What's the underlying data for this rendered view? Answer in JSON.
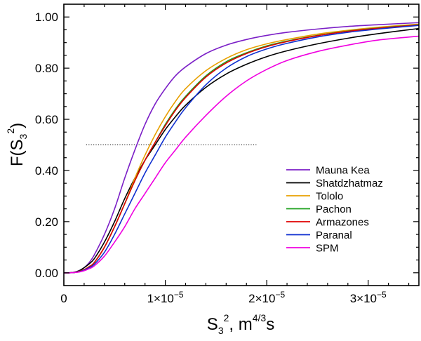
{
  "chart_data": {
    "type": "line",
    "title": "",
    "xlabel": {
      "base": "S",
      "sub": "3",
      "sup": "2",
      "units_prefix": ",  m",
      "units_sup": "4/3",
      "units_suffix": "s"
    },
    "ylabel": {
      "prefix": "F(S",
      "sub": "3",
      "sup": "2",
      "suffix": ")"
    },
    "xlim": [
      0,
      3.5e-05
    ],
    "ylim": [
      -0.05,
      1.05
    ],
    "x_ticks": [
      {
        "value": 0,
        "mant": "0",
        "exp": ""
      },
      {
        "value": 1e-05,
        "mant": "1×10",
        "exp": "−5"
      },
      {
        "value": 2e-05,
        "mant": "2×10",
        "exp": "−5"
      },
      {
        "value": 3e-05,
        "mant": "3×10",
        "exp": "−5"
      }
    ],
    "y_ticks": [
      {
        "value": 0.0,
        "label": "0.00"
      },
      {
        "value": 0.2,
        "label": "0.20"
      },
      {
        "value": 0.4,
        "label": "0.40"
      },
      {
        "value": 0.6,
        "label": "0.60"
      },
      {
        "value": 0.8,
        "label": "0.80"
      },
      {
        "value": 1.0,
        "label": "1.00"
      }
    ],
    "reference_line": {
      "x_start": 2.2e-06,
      "x_end": 1.9e-05,
      "y": 0.5,
      "style": "dotted"
    },
    "legend_position": "center-right",
    "series": [
      {
        "name": "Mauna Kea",
        "color": "#7B1FC7",
        "x": [
          0,
          5e-07,
          1e-06,
          1.5e-06,
          2e-06,
          2.5e-06,
          3e-06,
          4e-06,
          5e-06,
          6e-06,
          7e-06,
          8e-06,
          9e-06,
          1e-05,
          1.1e-05,
          1.2e-05,
          1.4e-05,
          1.6e-05,
          1.8e-05,
          2e-05,
          2.2e-05,
          2.5e-05,
          2.8e-05,
          3.1e-05,
          3.5e-05
        ],
        "y": [
          0,
          0,
          0.002,
          0.008,
          0.02,
          0.04,
          0.07,
          0.15,
          0.25,
          0.37,
          0.48,
          0.58,
          0.66,
          0.72,
          0.77,
          0.805,
          0.857,
          0.89,
          0.912,
          0.928,
          0.94,
          0.953,
          0.963,
          0.97,
          0.978
        ]
      },
      {
        "name": "Shatdzhatmaz",
        "color": "#000000",
        "x": [
          0,
          5e-07,
          1e-06,
          1.5e-06,
          2e-06,
          2.5e-06,
          3e-06,
          4e-06,
          5e-06,
          6e-06,
          7e-06,
          8e-06,
          9e-06,
          1e-05,
          1.1e-05,
          1.2e-05,
          1.4e-05,
          1.6e-05,
          1.8e-05,
          2e-05,
          2.2e-05,
          2.5e-05,
          2.8e-05,
          3.1e-05,
          3.5e-05
        ],
        "y": [
          0,
          0,
          0.002,
          0.008,
          0.02,
          0.035,
          0.055,
          0.12,
          0.2,
          0.29,
          0.37,
          0.44,
          0.5,
          0.56,
          0.61,
          0.655,
          0.725,
          0.777,
          0.815,
          0.845,
          0.868,
          0.895,
          0.917,
          0.935,
          0.955
        ]
      },
      {
        "name": "Tololo",
        "color": "#E8A000",
        "x": [
          0,
          5e-07,
          1e-06,
          1.5e-06,
          2e-06,
          2.5e-06,
          3e-06,
          4e-06,
          5e-06,
          6e-06,
          7e-06,
          8e-06,
          9e-06,
          1e-05,
          1.1e-05,
          1.2e-05,
          1.4e-05,
          1.6e-05,
          1.8e-05,
          2e-05,
          2.2e-05,
          2.5e-05,
          2.8e-05,
          3.1e-05,
          3.5e-05
        ],
        "y": [
          0,
          0,
          0.001,
          0.005,
          0.012,
          0.024,
          0.04,
          0.1,
          0.18,
          0.27,
          0.37,
          0.46,
          0.54,
          0.61,
          0.67,
          0.72,
          0.79,
          0.838,
          0.872,
          0.895,
          0.912,
          0.933,
          0.948,
          0.96,
          0.972
        ]
      },
      {
        "name": "Pachon",
        "color": "#1EA01E",
        "x": [
          0,
          5e-07,
          1e-06,
          1.5e-06,
          2e-06,
          2.5e-06,
          3e-06,
          4e-06,
          5e-06,
          6e-06,
          7e-06,
          8e-06,
          9e-06,
          1e-05,
          1.1e-05,
          1.2e-05,
          1.4e-05,
          1.6e-05,
          1.8e-05,
          2e-05,
          2.2e-05,
          2.5e-05,
          2.8e-05,
          3.1e-05,
          3.5e-05
        ],
        "y": [
          0,
          0,
          0.001,
          0.005,
          0.012,
          0.024,
          0.04,
          0.1,
          0.18,
          0.27,
          0.36,
          0.44,
          0.51,
          0.58,
          0.64,
          0.69,
          0.77,
          0.825,
          0.86,
          0.887,
          0.906,
          0.928,
          0.945,
          0.957,
          0.97
        ]
      },
      {
        "name": "Armazones",
        "color": "#E00000",
        "x": [
          0,
          5e-07,
          1e-06,
          1.5e-06,
          2e-06,
          2.5e-06,
          3e-06,
          4e-06,
          5e-06,
          6e-06,
          7e-06,
          8e-06,
          9e-06,
          1e-05,
          1.1e-05,
          1.2e-05,
          1.4e-05,
          1.6e-05,
          1.8e-05,
          2e-05,
          2.2e-05,
          2.5e-05,
          2.8e-05,
          3.1e-05,
          3.5e-05
        ],
        "y": [
          0,
          0,
          0.001,
          0.005,
          0.012,
          0.024,
          0.04,
          0.1,
          0.18,
          0.27,
          0.36,
          0.44,
          0.51,
          0.575,
          0.635,
          0.685,
          0.765,
          0.82,
          0.857,
          0.884,
          0.904,
          0.927,
          0.944,
          0.956,
          0.969
        ]
      },
      {
        "name": "Paranal",
        "color": "#1030D0",
        "x": [
          0,
          5e-07,
          1e-06,
          1.5e-06,
          2e-06,
          2.5e-06,
          3e-06,
          4e-06,
          5e-06,
          6e-06,
          7e-06,
          8e-06,
          9e-06,
          1e-05,
          1.1e-05,
          1.2e-05,
          1.4e-05,
          1.6e-05,
          1.8e-05,
          2e-05,
          2.2e-05,
          2.5e-05,
          2.8e-05,
          3.1e-05,
          3.5e-05
        ],
        "y": [
          0,
          0,
          0.001,
          0.004,
          0.01,
          0.02,
          0.033,
          0.08,
          0.15,
          0.23,
          0.31,
          0.39,
          0.46,
          0.53,
          0.59,
          0.645,
          0.735,
          0.8,
          0.845,
          0.875,
          0.897,
          0.922,
          0.94,
          0.953,
          0.967
        ]
      },
      {
        "name": "SPM",
        "color": "#F000E0",
        "x": [
          0,
          5e-07,
          1e-06,
          1.5e-06,
          2e-06,
          2.5e-06,
          3e-06,
          4e-06,
          5e-06,
          6e-06,
          7e-06,
          8e-06,
          9e-06,
          1e-05,
          1.1e-05,
          1.2e-05,
          1.4e-05,
          1.6e-05,
          1.8e-05,
          2e-05,
          2.2e-05,
          2.5e-05,
          2.8e-05,
          3.1e-05,
          3.5e-05
        ],
        "y": [
          0,
          0,
          0.001,
          0.003,
          0.008,
          0.016,
          0.027,
          0.065,
          0.12,
          0.18,
          0.25,
          0.31,
          0.37,
          0.43,
          0.48,
          0.53,
          0.615,
          0.69,
          0.75,
          0.795,
          0.83,
          0.865,
          0.89,
          0.91,
          0.925
        ]
      }
    ]
  }
}
